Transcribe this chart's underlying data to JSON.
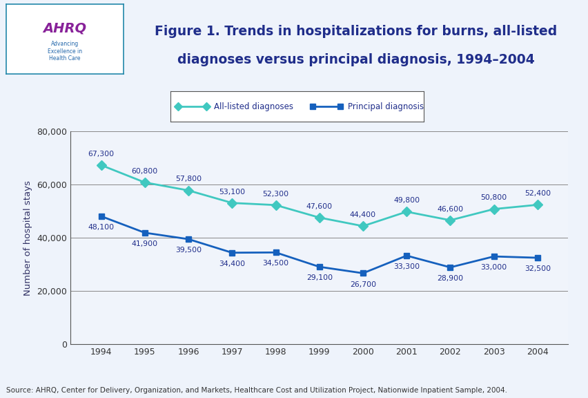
{
  "years": [
    1994,
    1995,
    1996,
    1997,
    1998,
    1999,
    2000,
    2001,
    2002,
    2003,
    2004
  ],
  "all_listed": [
    67300,
    60800,
    57800,
    53100,
    52300,
    47600,
    44400,
    49800,
    46600,
    50800,
    52400
  ],
  "principal": [
    48100,
    41900,
    39500,
    34400,
    34500,
    29100,
    26700,
    33300,
    28900,
    33000,
    32500
  ],
  "all_listed_labels": [
    "67,300",
    "60,800",
    "57,800",
    "53,100",
    "52,300",
    "47,600",
    "44,400",
    "49,800",
    "46,600",
    "50,800",
    "52,400"
  ],
  "principal_labels": [
    "48,100",
    "41,900",
    "39,500",
    "34,400",
    "34,500",
    "29,100",
    "26,700",
    "33,300",
    "28,900",
    "33,000",
    "32,500"
  ],
  "all_listed_color": "#40C8C0",
  "principal_color": "#1560BD",
  "title_line1": "Figure 1. Trends in hospitalizations for burns, all-listed",
  "title_line2": "diagnoses versus principal diagnosis, 1994–2004",
  "ylabel": "Number of hospital stays",
  "ylim": [
    0,
    80000
  ],
  "yticks": [
    0,
    20000,
    40000,
    60000,
    80000
  ],
  "ytick_labels": [
    "0",
    "20,000",
    "40,000",
    "60,000",
    "80,000"
  ],
  "source_text": "Source: AHRQ, Center for Delivery, Organization, and Markets, Healthcare Cost and Utilization Project, Nationwide Inpatient Sample, 2004.",
  "legend_all_listed": "All-listed diagnoses",
  "legend_principal": "Principal diagnosis",
  "bg_color": "#EEF3FB",
  "plot_bg_color": "#F0F4FB",
  "title_color": "#1F2D8A",
  "axis_color": "#333366",
  "separator_dark": "#1F2D8A",
  "separator_light": "#4DBBBB"
}
